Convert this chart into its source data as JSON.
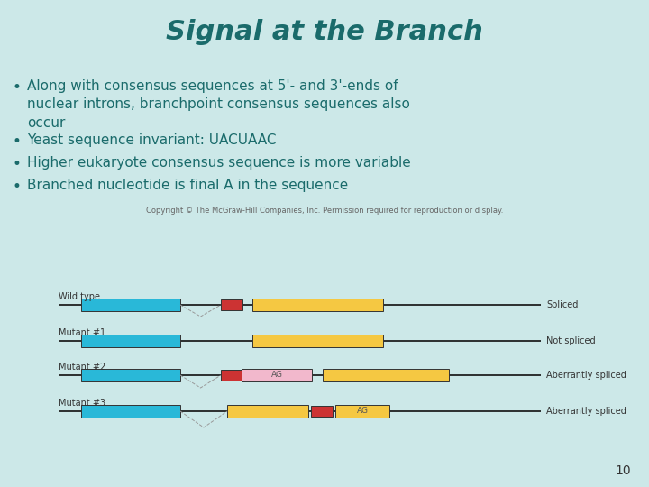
{
  "bg_color": "#cce8e8",
  "title": "Signal at the Branch",
  "title_color": "#1a6b6b",
  "title_fontsize": 22,
  "bullet_color": "#1a6b6b",
  "bullet_fontsize": 11,
  "copyright_text": "Copyright © The McGraw-Hill Companies, Inc. Permission required for reproduction or d splay.",
  "copyright_fontsize": 6,
  "row_labels": [
    "Wild type",
    "Mutant #1",
    "Mutant #2",
    "Mutant #3"
  ],
  "row_labels_color": "#333333",
  "result_labels": [
    "Spliced",
    "Not spliced",
    "Aberrantly spliced",
    "Aberrantly spliced"
  ],
  "cyan_color": "#29b8d8",
  "yellow_color": "#f5c842",
  "red_color": "#cc3333",
  "pink_color": "#f2b8cc",
  "line_color": "#111111",
  "dashed_color": "#999999",
  "page_number": "10",
  "bullet_texts": [
    "Along with consensus sequences at 5'- and 3'-ends of\nnuclear introns, branchpoint consensus sequences also\noccur",
    "Yeast sequence invariant: UACUAAC",
    "Higher eukaryote consensus sequence is more variable",
    "Branched nucleotide is final A in the sequence"
  ]
}
